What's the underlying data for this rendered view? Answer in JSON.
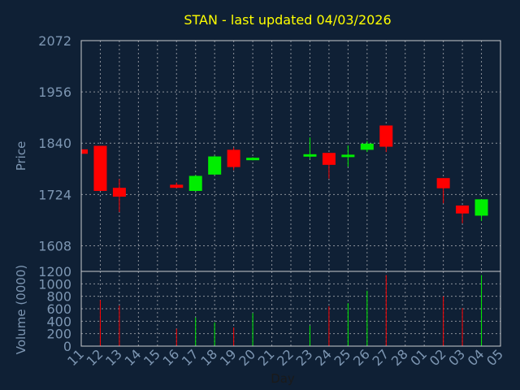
{
  "chart_data": {
    "type": "candlestick",
    "title": "STAN - last updated 04/03/2026",
    "xlabel": "Day",
    "ylabel_price": "Price",
    "ylabel_volume": "Volume (0000)",
    "price_ticks": [
      1608,
      1724,
      1840,
      1956,
      2072
    ],
    "price_range": [
      1550,
      2072
    ],
    "volume_ticks": [
      0,
      200,
      400,
      600,
      800,
      1000,
      1200
    ],
    "volume_range": [
      0,
      1200
    ],
    "grid": true,
    "colors": {
      "up": "#00ee00",
      "down": "#ff0000",
      "background": "#0f2035",
      "title": "#ffff00",
      "label": "#7d96b2"
    },
    "x_labels": [
      "11",
      "12",
      "13",
      "14",
      "15",
      "16",
      "17",
      "18",
      "19",
      "20",
      "21",
      "22",
      "23",
      "24",
      "25",
      "26",
      "27",
      "28",
      "01",
      "02",
      "03",
      "04",
      "05"
    ],
    "candles": [
      {
        "day": "11",
        "open": 1826,
        "close": 1816,
        "high": 1826,
        "low": 1816,
        "volume": 0
      },
      {
        "day": "12",
        "open": 1834,
        "close": 1732,
        "high": 1834,
        "low": 1732,
        "volume": 740
      },
      {
        "day": "13",
        "open": 1739,
        "close": 1719,
        "high": 1759,
        "low": 1684,
        "volume": 650
      },
      {
        "day": "16",
        "open": 1746,
        "close": 1739,
        "high": 1751,
        "low": 1739,
        "volume": 280
      },
      {
        "day": "17",
        "open": 1732,
        "close": 1766,
        "high": 1768,
        "low": 1731,
        "volume": 460
      },
      {
        "day": "18",
        "open": 1769,
        "close": 1810,
        "high": 1812,
        "low": 1768,
        "volume": 380
      },
      {
        "day": "19",
        "open": 1825,
        "close": 1786,
        "high": 1830,
        "low": 1779,
        "volume": 300
      },
      {
        "day": "20",
        "open": 1802,
        "close": 1807,
        "high": 1808,
        "low": 1801,
        "volume": 530
      },
      {
        "day": "23",
        "open": 1812,
        "close": 1815,
        "high": 1853,
        "low": 1805,
        "volume": 330
      },
      {
        "day": "24",
        "open": 1818,
        "close": 1791,
        "high": 1818,
        "low": 1760,
        "volume": 640
      },
      {
        "day": "25",
        "open": 1810,
        "close": 1814,
        "high": 1835,
        "low": 1787,
        "volume": 690
      },
      {
        "day": "26",
        "open": 1825,
        "close": 1839,
        "high": 1845,
        "low": 1820,
        "volume": 890
      },
      {
        "day": "27",
        "open": 1880,
        "close": 1832,
        "high": 1880,
        "low": 1820,
        "volume": 1140
      },
      {
        "day": "02",
        "open": 1761,
        "close": 1738,
        "high": 1761,
        "low": 1704,
        "volume": 800
      },
      {
        "day": "03",
        "open": 1699,
        "close": 1681,
        "high": 1699,
        "low": 1659,
        "volume": 610
      },
      {
        "day": "04",
        "open": 1676,
        "close": 1713,
        "high": 1713,
        "low": 1664,
        "volume": 1140
      }
    ]
  }
}
